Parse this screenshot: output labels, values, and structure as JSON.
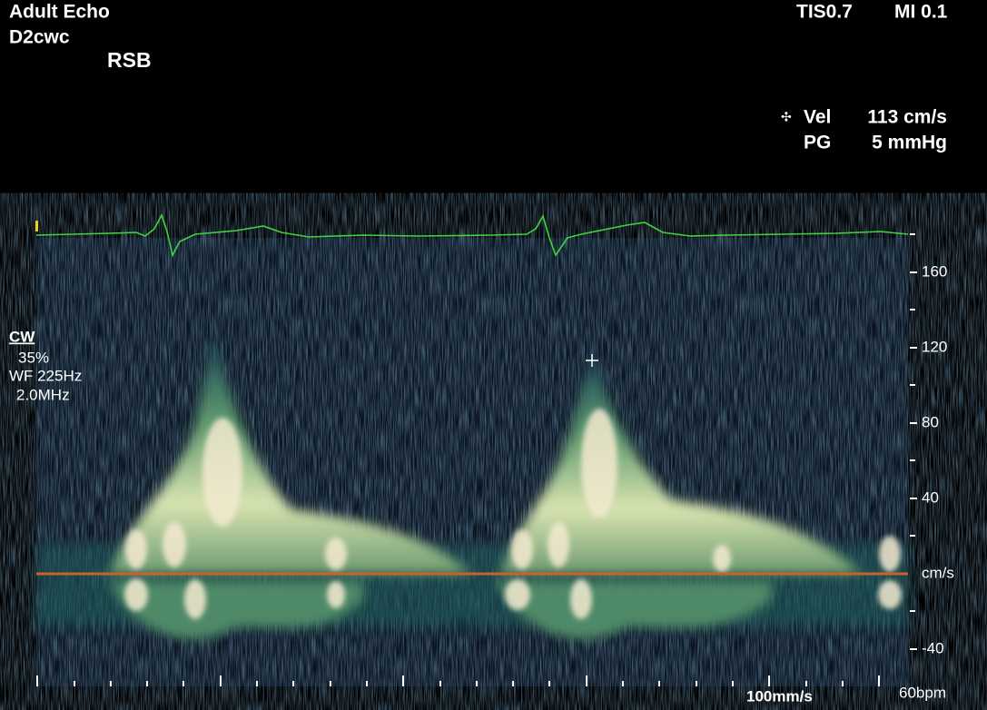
{
  "header": {
    "preset": "Adult Echo",
    "probe": "D2cwc",
    "view": "RSB",
    "tis": "TIS0.7",
    "mi": "MI 0.1"
  },
  "measurement": {
    "vel_label": "Vel",
    "vel_value": "113 cm/s",
    "pg_label": "PG",
    "pg_value": "5 mmHg"
  },
  "settings": {
    "mode": "CW",
    "gain": "35%",
    "wall_filter": "WF 225Hz",
    "frequency": "2.0MHz"
  },
  "scale": {
    "ticks": [
      160,
      120,
      80,
      40,
      -40
    ],
    "unit": "cm/s"
  },
  "footer": {
    "sweep": "100mm/s",
    "heart_rate": "60bpm"
  }
}
